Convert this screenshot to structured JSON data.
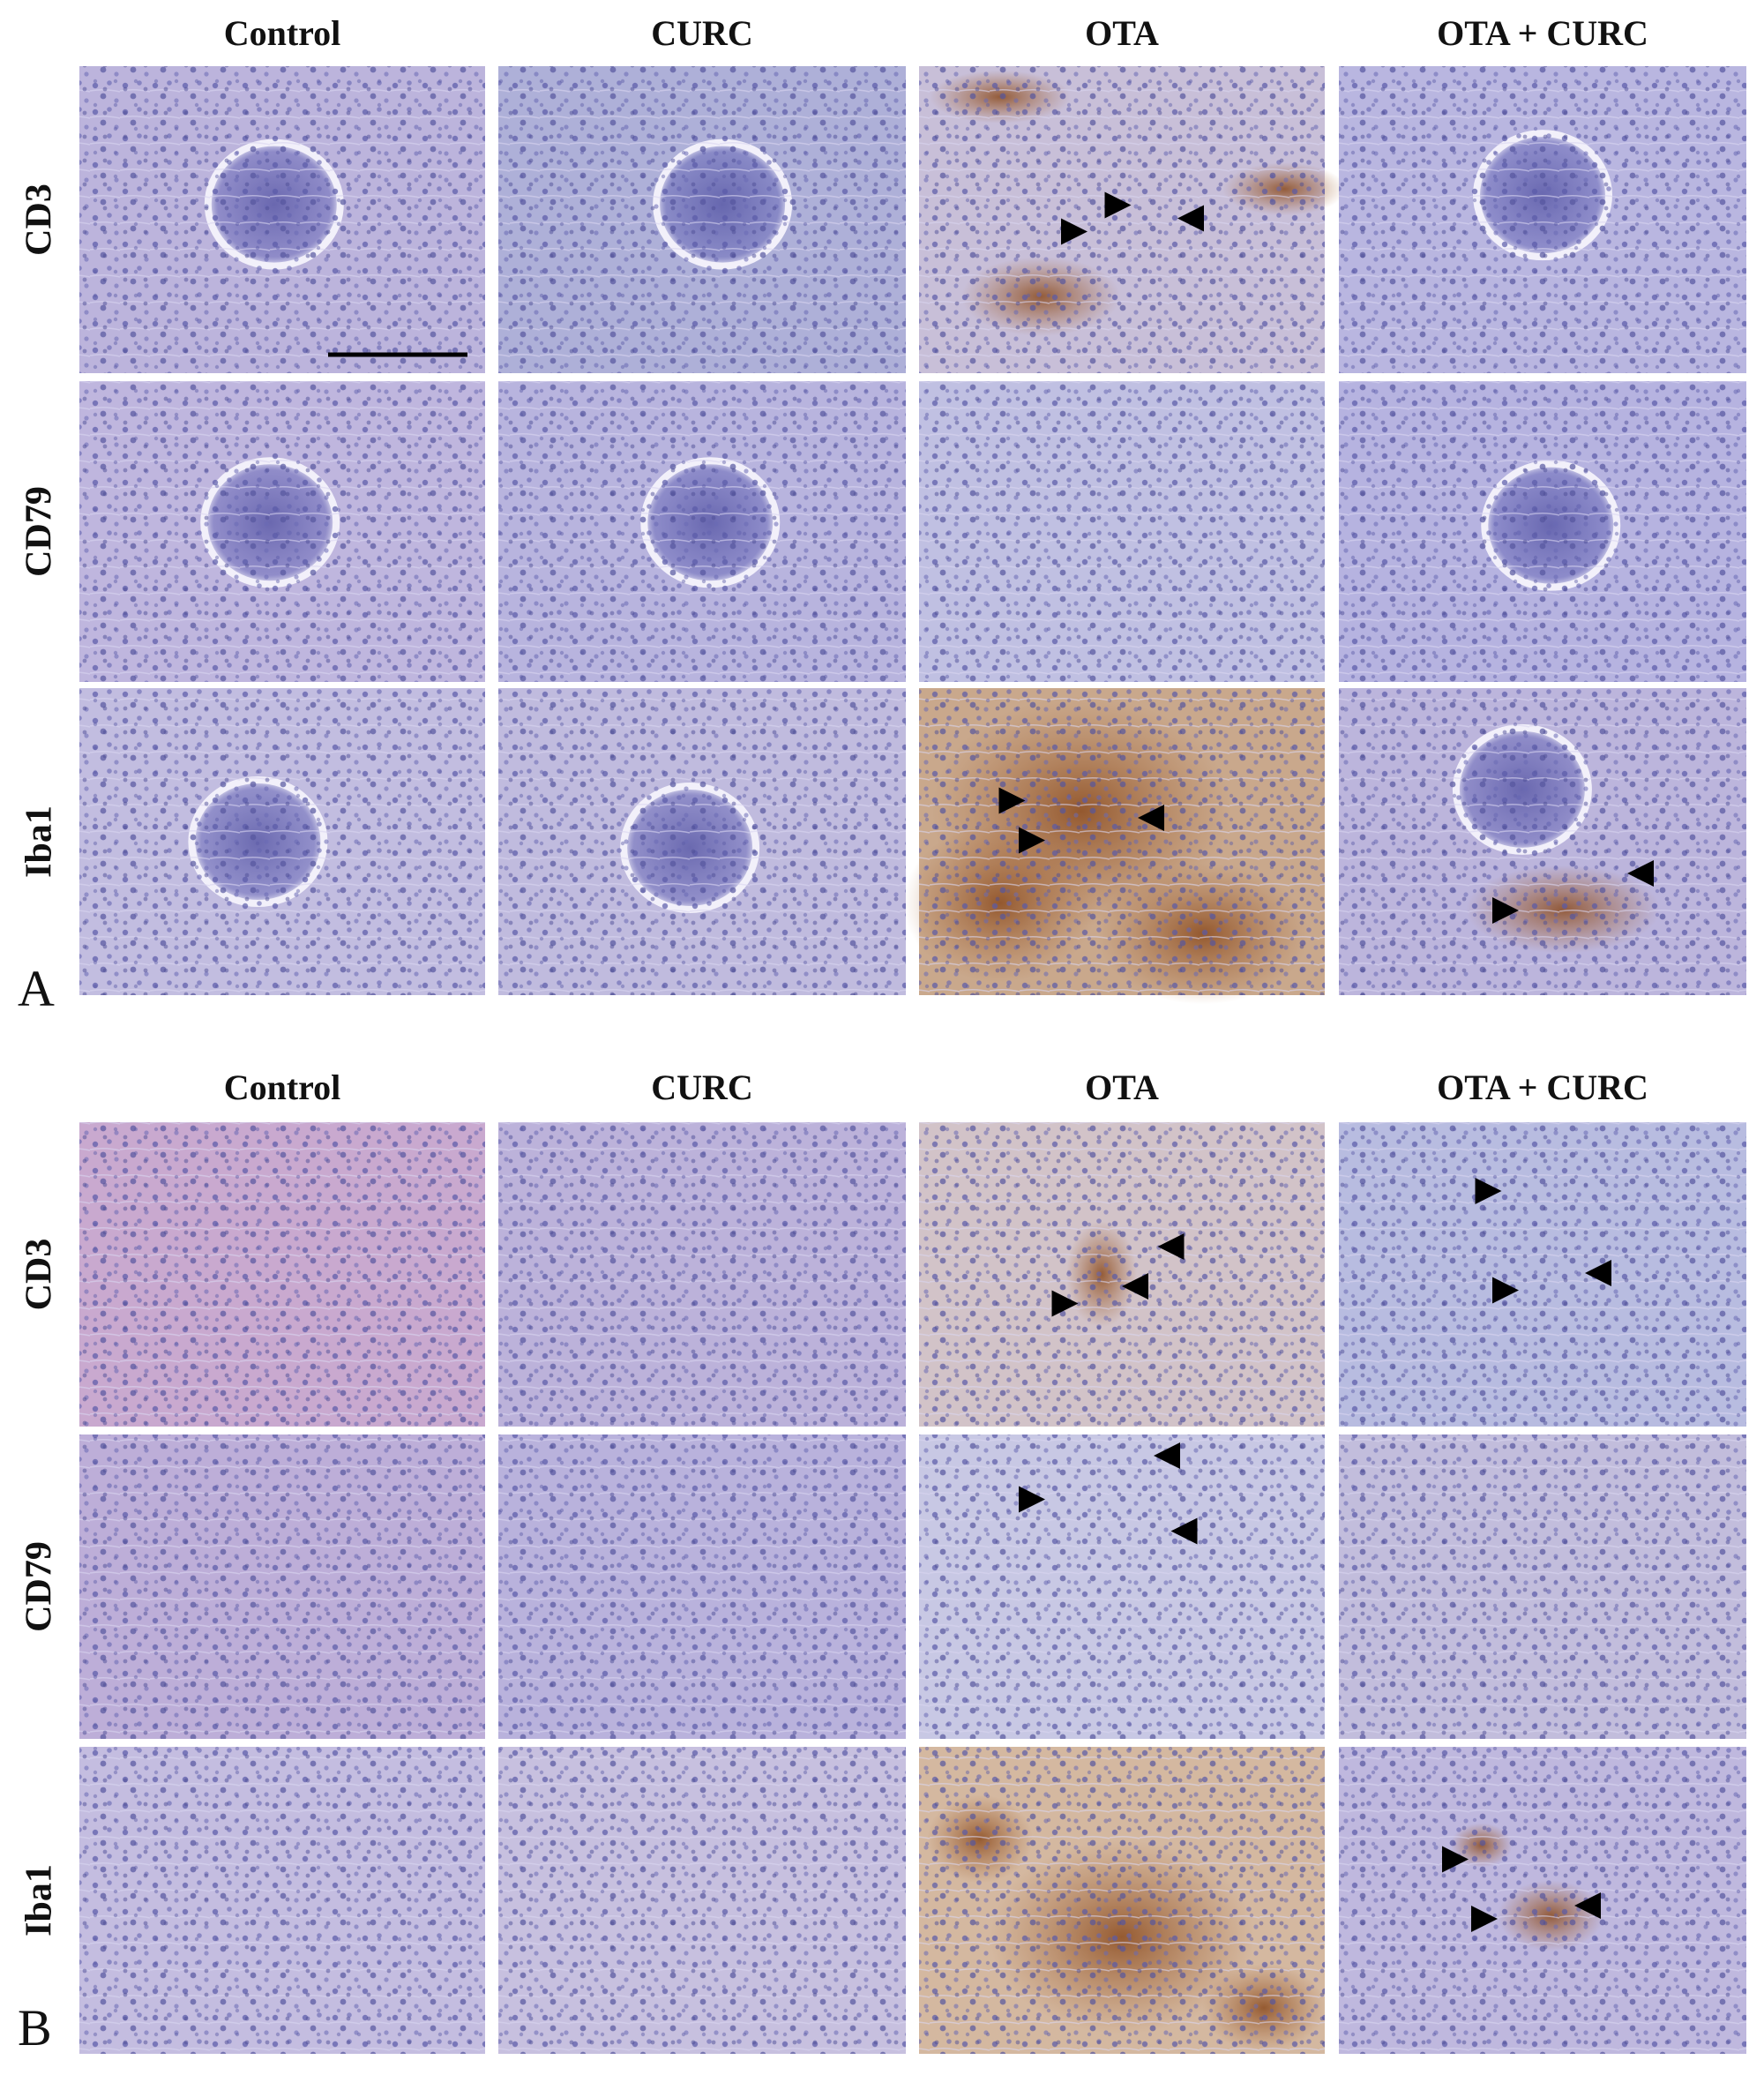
{
  "panels": [
    {
      "label": "A",
      "columns": [
        "Control",
        "CURC",
        "OTA",
        "OTA + CURC"
      ],
      "rows": [
        "CD3",
        "CD79",
        "Iba1"
      ]
    },
    {
      "label": "B",
      "columns": [
        "Control",
        "CURC",
        "OTA",
        "OTA + CURC"
      ],
      "rows": [
        "CD3",
        "CD79",
        "Iba1"
      ]
    }
  ]
}
